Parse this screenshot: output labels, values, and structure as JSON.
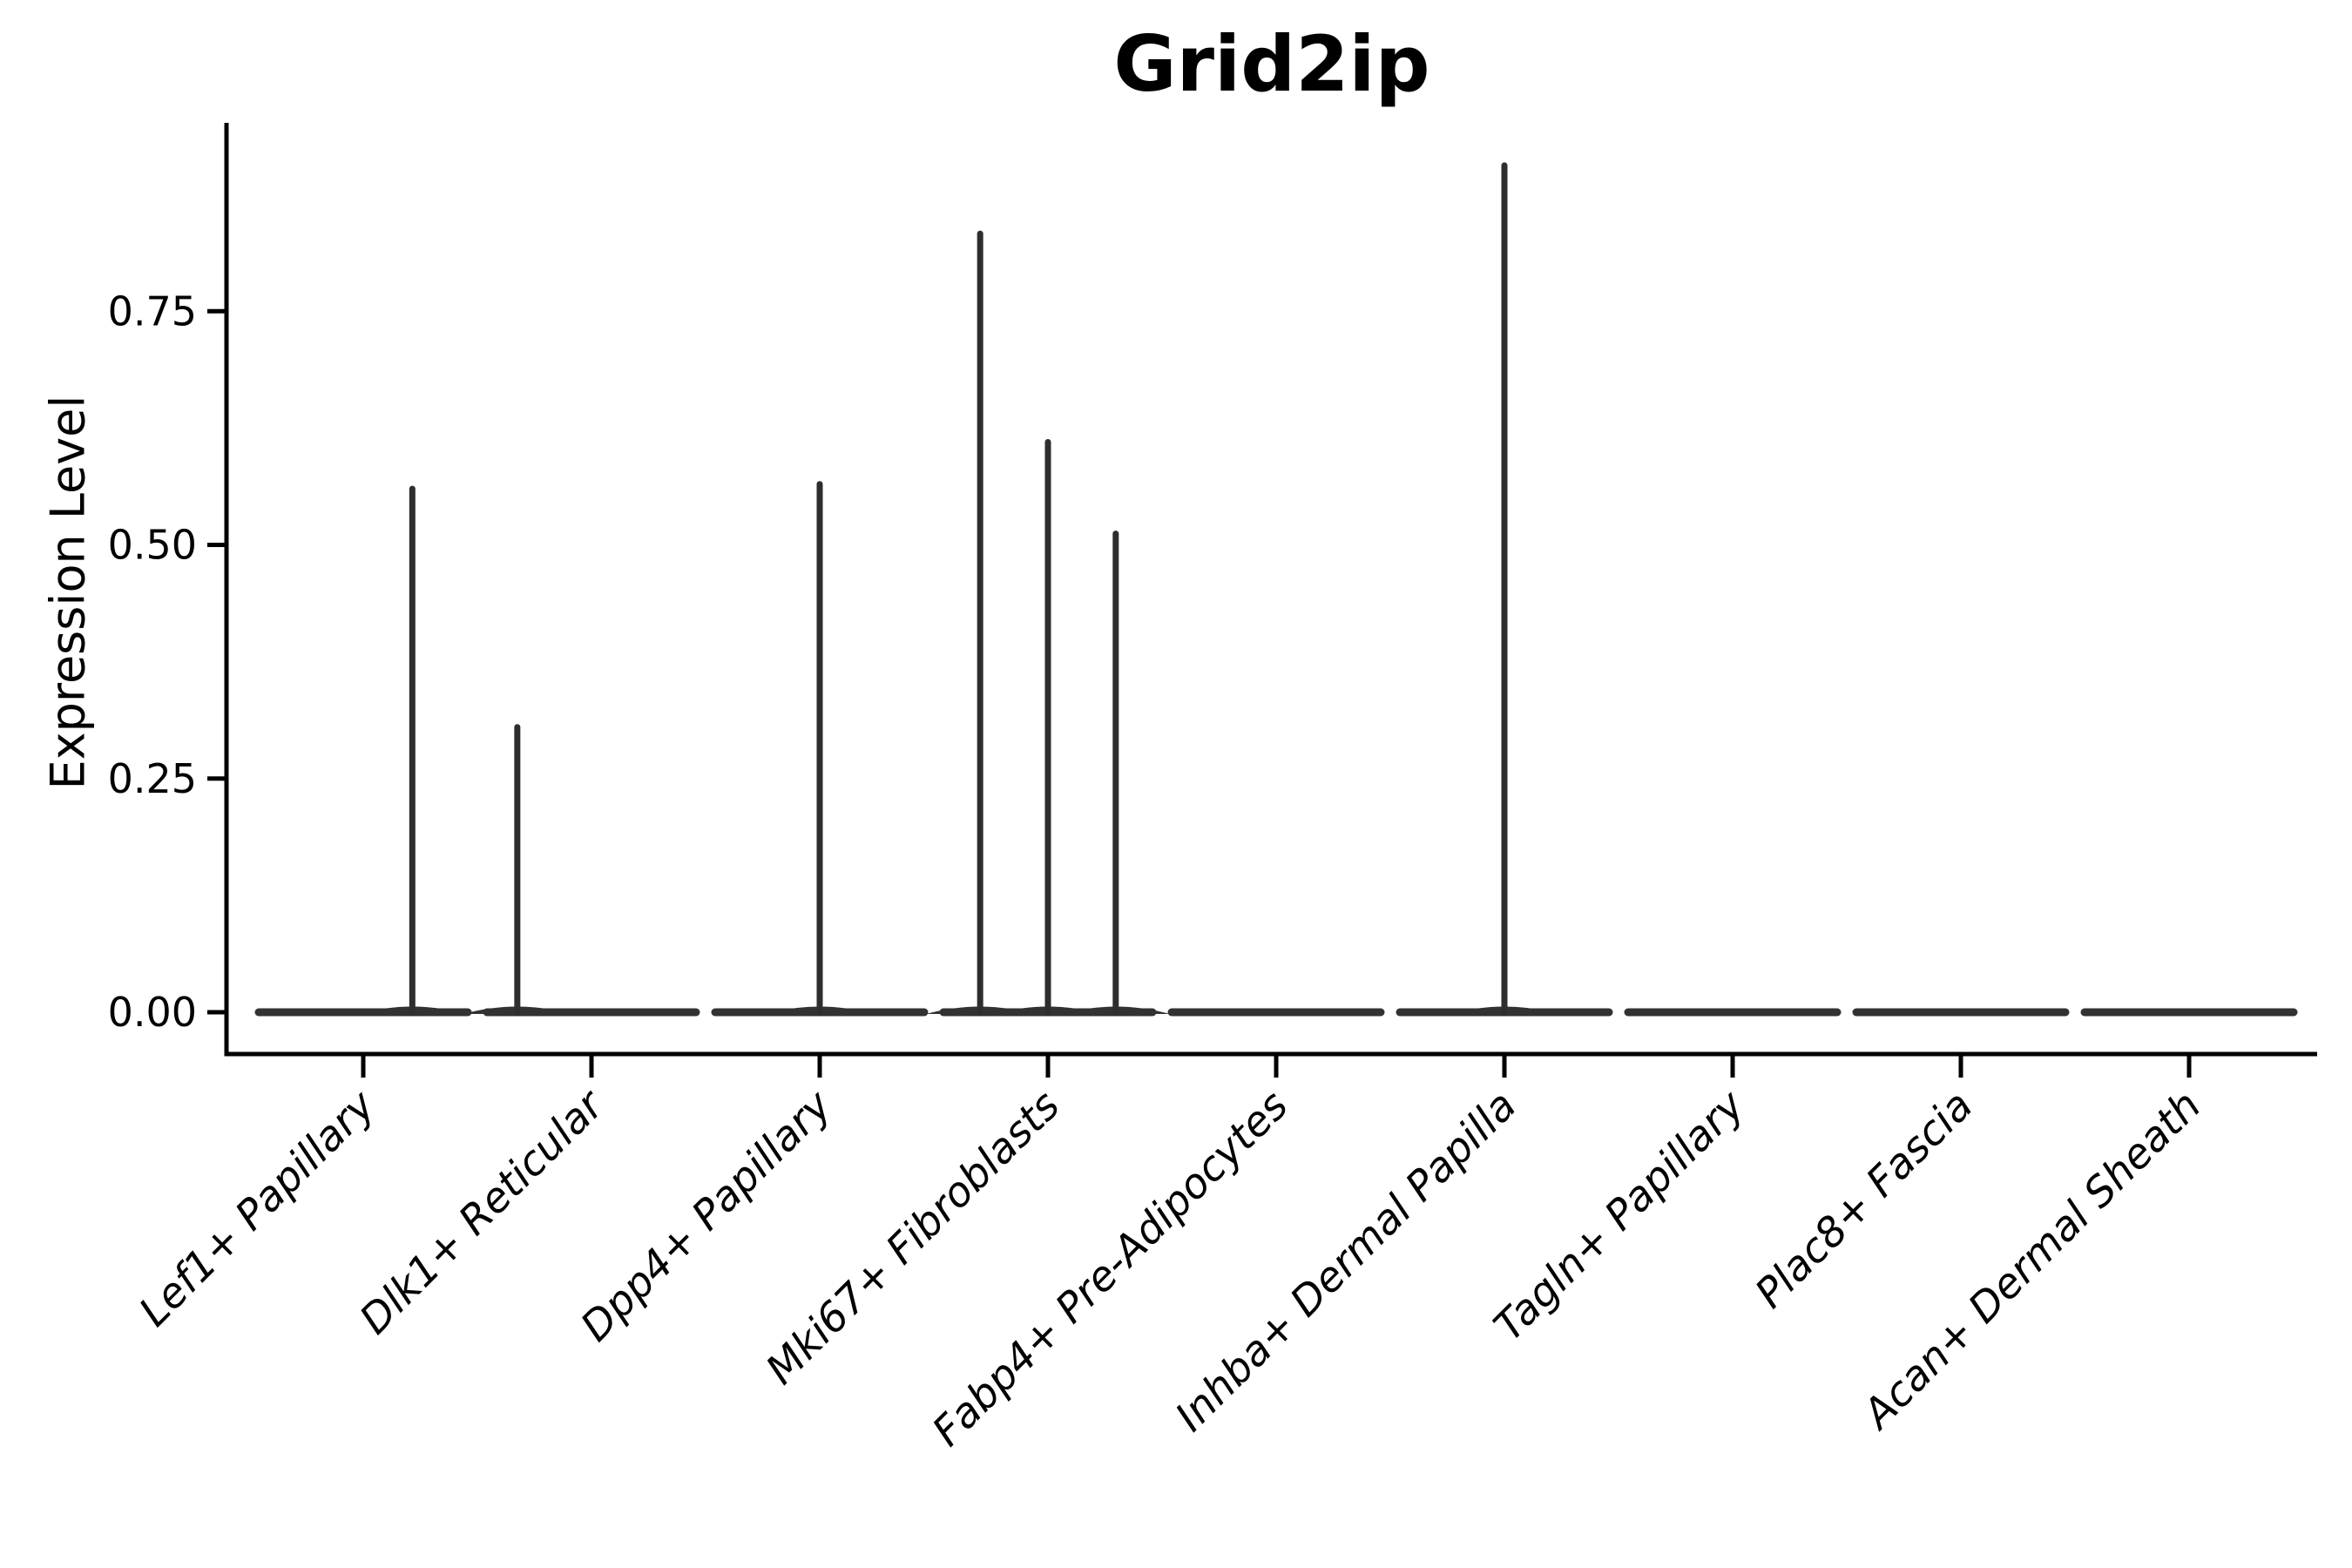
{
  "chart_data": {
    "type": "violin",
    "title": "Grid2ip",
    "xlabel": "",
    "ylabel": "Expression Level",
    "ylim": [
      0,
      0.95
    ],
    "grid": false,
    "legend": "none",
    "ytick_labels": [
      "0.00",
      "0.25",
      "0.50",
      "0.75"
    ],
    "ytick_values": [
      0.0,
      0.25,
      0.5,
      0.75
    ],
    "categories": [
      "Lef1+ Papillary",
      "Dlk1+ Reticular",
      "Dpp4+ Papillary",
      "Mki67+ Fibroblasts",
      "Fabp4+ Pre-Adipocytes",
      "Inhba+ Dermal Papilla",
      "Tagln+ Papillary",
      "Plac8+ Fascia",
      "Acan+ Dermal Sheath"
    ],
    "violins": [
      {
        "category": "Lef1+ Papillary",
        "baseline_value": 0.0,
        "spikes": [
          {
            "offset": 0.215,
            "max_value": 0.56
          }
        ]
      },
      {
        "category": "Dlk1+ Reticular",
        "baseline_value": 0.0,
        "spikes": [
          {
            "offset": -0.325,
            "max_value": 0.305
          }
        ]
      },
      {
        "category": "Dpp4+ Papillary",
        "baseline_value": 0.0,
        "spikes": [
          {
            "offset": 0.0,
            "max_value": 0.565
          }
        ]
      },
      {
        "category": "Mki67+ Fibroblasts",
        "baseline_value": 0.0,
        "spikes": [
          {
            "offset": -0.297,
            "max_value": 0.833
          },
          {
            "offset": 0.0,
            "max_value": 0.61
          },
          {
            "offset": 0.297,
            "max_value": 0.512
          }
        ]
      },
      {
        "category": "Fabp4+ Pre-Adipocytes",
        "baseline_value": 0.0,
        "spikes": []
      },
      {
        "category": "Inhba+ Dermal Papilla",
        "baseline_value": 0.0,
        "spikes": [
          {
            "offset": 0.0,
            "max_value": 0.906
          }
        ]
      },
      {
        "category": "Tagln+ Papillary",
        "baseline_value": 0.0,
        "spikes": []
      },
      {
        "category": "Plac8+ Fascia",
        "baseline_value": 0.0,
        "spikes": []
      },
      {
        "category": "Acan+ Dermal Sheath",
        "baseline_value": 0.0,
        "spikes": []
      }
    ],
    "style": {
      "background": "#ffffff",
      "axis_color": "#000000",
      "text_color": "#000000",
      "violin_stroke": "#2e2e2e",
      "baseline_stroke": "#323232"
    }
  }
}
